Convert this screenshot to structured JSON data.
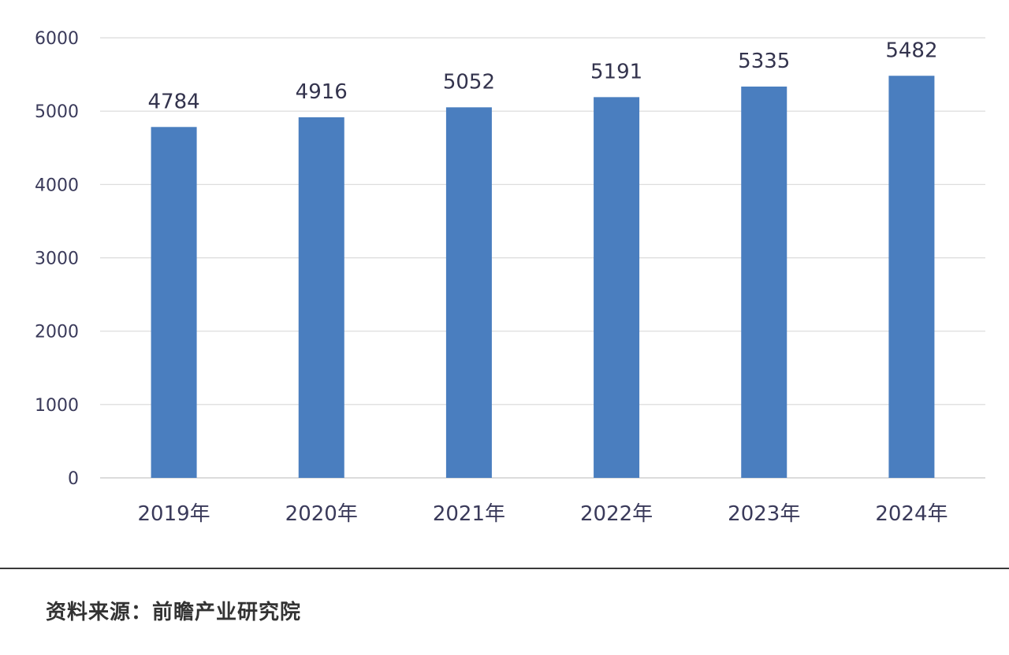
{
  "chart_data": {
    "type": "bar",
    "categories": [
      "2019年",
      "2020年",
      "2021年",
      "2022年",
      "2023年",
      "2024年"
    ],
    "values": [
      4784,
      4916,
      5052,
      5191,
      5335,
      5482
    ],
    "ylim": [
      0,
      6000
    ],
    "yticks": [
      0,
      1000,
      2000,
      3000,
      4000,
      5000,
      6000
    ],
    "title": "",
    "xlabel": "",
    "ylabel": "",
    "grid": true,
    "bar_color": "#4a7ebf",
    "grid_color": "#d9d9d9",
    "data_labels": true
  },
  "source": {
    "text": "资料来源：前瞻产业研究院"
  }
}
